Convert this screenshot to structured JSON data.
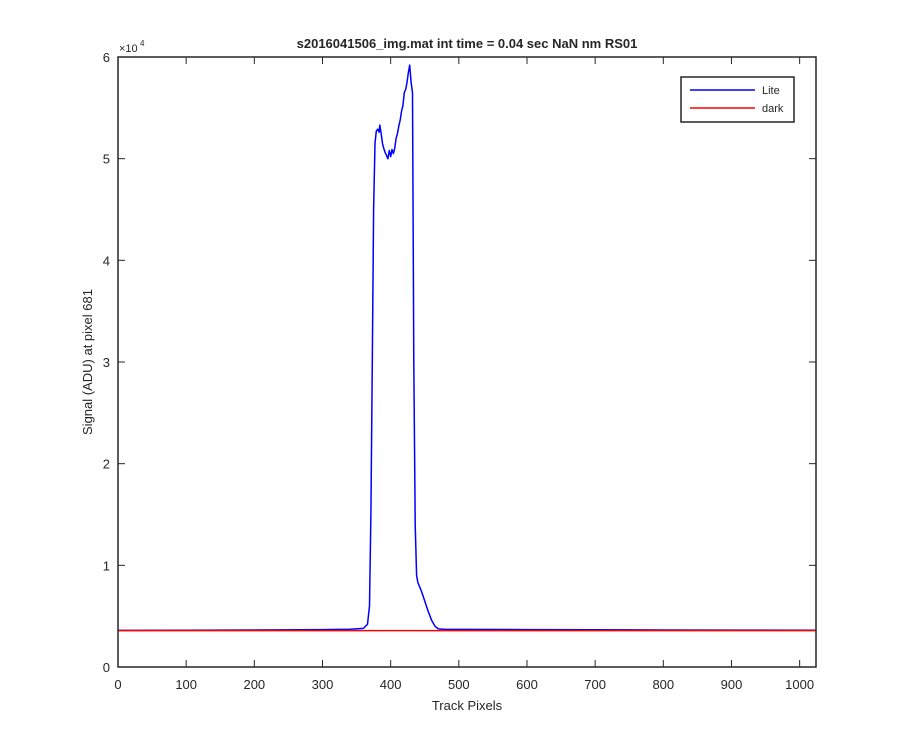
{
  "chart_data": {
    "type": "line",
    "title": "s2016041506_img.mat int time = 0.04 sec  NaN nm RS01",
    "xlabel": "Track Pixels",
    "ylabel": "Signal (ADU) at pixel 681",
    "xlim": [
      0,
      1024
    ],
    "ylim": [
      0,
      60000
    ],
    "xticks": [
      0,
      100,
      200,
      300,
      400,
      500,
      600,
      700,
      800,
      900,
      1000
    ],
    "xtick_labels": [
      "0",
      "100",
      "200",
      "300",
      "400",
      "500",
      "600",
      "700",
      "800",
      "900",
      "1000"
    ],
    "yticks": [
      0,
      10000,
      20000,
      30000,
      40000,
      50000,
      60000
    ],
    "ytick_labels": [
      "0",
      "1",
      "2",
      "3",
      "4",
      "5",
      "6"
    ],
    "y_exponent_label": "×10",
    "y_exponent_power": "4",
    "grid": false,
    "legend_position": "top-right",
    "series": [
      {
        "name": "Lite",
        "color": "#0000ff",
        "points": [
          [
            0,
            3600
          ],
          [
            100,
            3620
          ],
          [
            200,
            3640
          ],
          [
            300,
            3680
          ],
          [
            340,
            3720
          ],
          [
            360,
            3800
          ],
          [
            366,
            4200
          ],
          [
            369,
            6000
          ],
          [
            371,
            15000
          ],
          [
            373,
            30000
          ],
          [
            375,
            45000
          ],
          [
            377,
            51500
          ],
          [
            379,
            52700
          ],
          [
            381,
            52900
          ],
          [
            383,
            52600
          ],
          [
            384,
            53300
          ],
          [
            386,
            52500
          ],
          [
            388,
            51500
          ],
          [
            390,
            51000
          ],
          [
            392,
            50600
          ],
          [
            394,
            50300
          ],
          [
            396,
            50000
          ],
          [
            398,
            50800
          ],
          [
            400,
            50200
          ],
          [
            402,
            50900
          ],
          [
            404,
            50500
          ],
          [
            406,
            51000
          ],
          [
            408,
            52000
          ],
          [
            410,
            52500
          ],
          [
            412,
            53200
          ],
          [
            414,
            53800
          ],
          [
            416,
            54700
          ],
          [
            418,
            55200
          ],
          [
            420,
            56500
          ],
          [
            422,
            56800
          ],
          [
            424,
            57500
          ],
          [
            426,
            58500
          ],
          [
            428,
            59200
          ],
          [
            430,
            57500
          ],
          [
            432,
            56500
          ],
          [
            434,
            30000
          ],
          [
            436,
            14000
          ],
          [
            438,
            9000
          ],
          [
            440,
            8300
          ],
          [
            445,
            7500
          ],
          [
            450,
            6500
          ],
          [
            455,
            5500
          ],
          [
            460,
            4600
          ],
          [
            465,
            4000
          ],
          [
            470,
            3750
          ],
          [
            480,
            3700
          ],
          [
            500,
            3700
          ],
          [
            600,
            3680
          ],
          [
            700,
            3660
          ],
          [
            800,
            3640
          ],
          [
            900,
            3630
          ],
          [
            1024,
            3620
          ]
        ]
      },
      {
        "name": "dark",
        "color": "#ff0000",
        "points": [
          [
            0,
            3580
          ],
          [
            1024,
            3580
          ]
        ]
      }
    ]
  }
}
